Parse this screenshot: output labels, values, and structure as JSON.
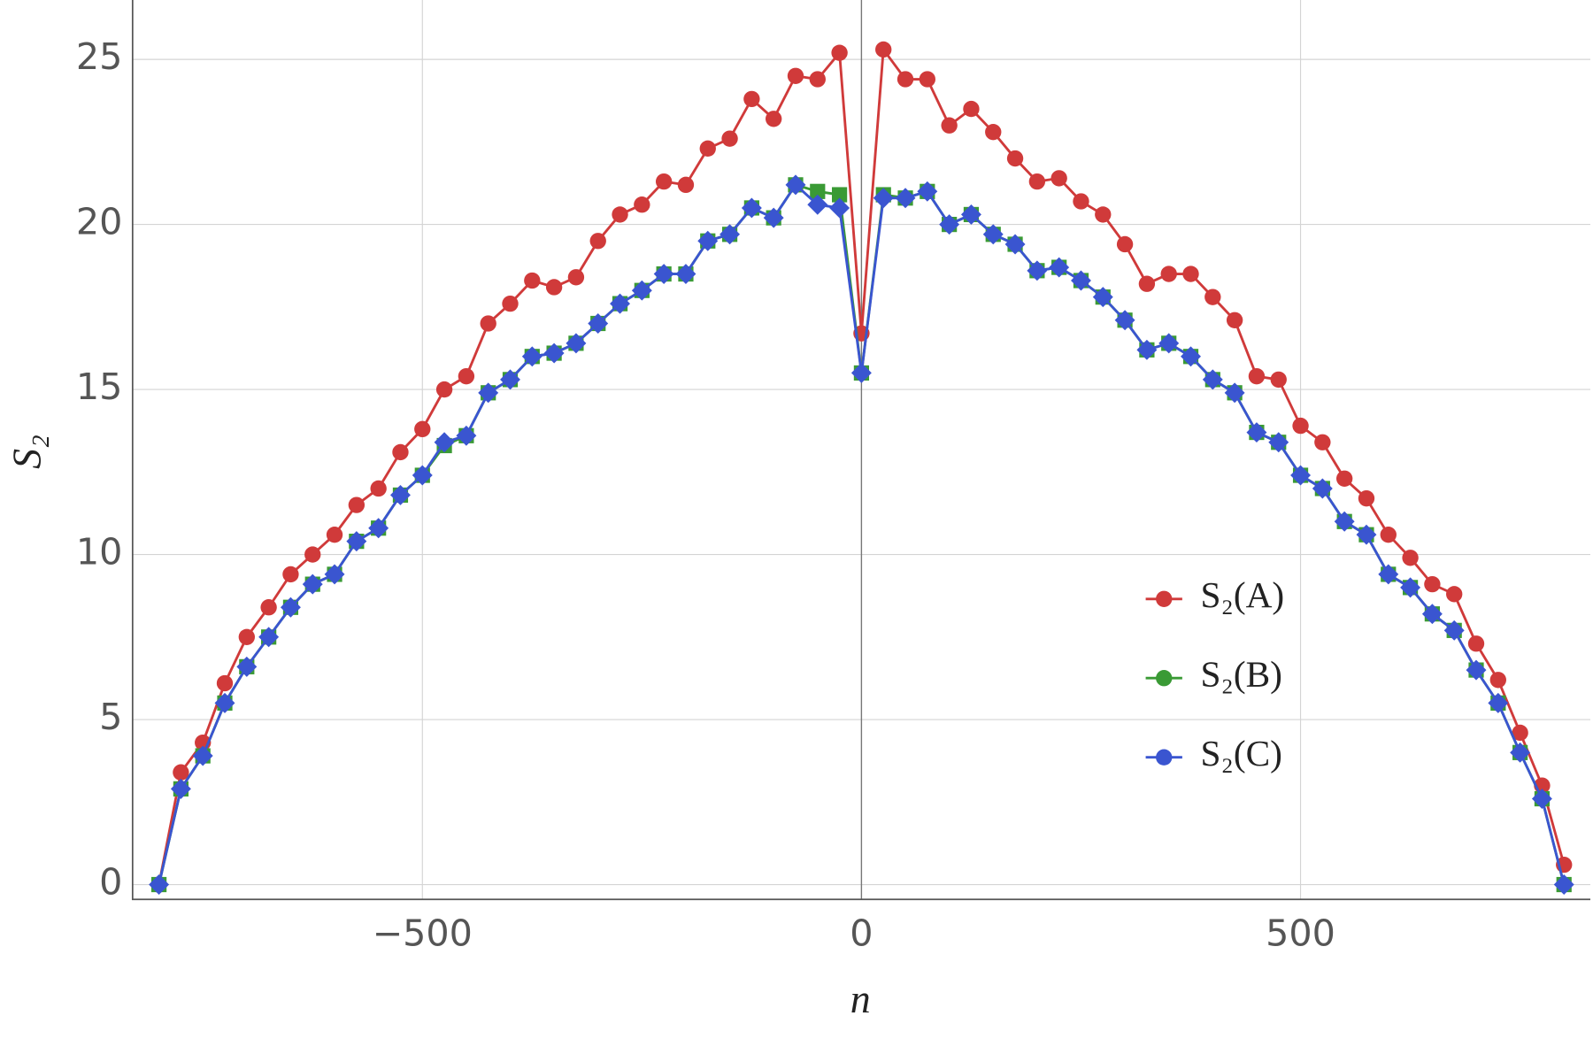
{
  "chart_data": {
    "type": "line",
    "x_label": "n",
    "y_label": "S₂",
    "x": [
      -800,
      -775,
      -750,
      -725,
      -700,
      -675,
      -650,
      -625,
      -600,
      -575,
      -550,
      -525,
      -500,
      -475,
      -450,
      -425,
      -400,
      -375,
      -350,
      -325,
      -300,
      -275,
      -250,
      -225,
      -200,
      -175,
      -150,
      -125,
      -100,
      -75,
      -50,
      -25,
      0,
      25,
      50,
      75,
      100,
      125,
      150,
      175,
      200,
      225,
      250,
      275,
      300,
      325,
      350,
      375,
      400,
      425,
      450,
      475,
      500,
      525,
      550,
      575,
      600,
      625,
      650,
      675,
      700,
      725,
      750,
      775,
      800
    ],
    "series": [
      {
        "name": "S₂(A)",
        "color": "#d03a3a",
        "marker": "circle",
        "values": [
          0,
          3.4,
          4.3,
          6.1,
          7.5,
          8.4,
          9.4,
          10.0,
          10.6,
          11.5,
          12.0,
          13.1,
          13.8,
          15.0,
          15.4,
          17.0,
          17.6,
          18.3,
          18.1,
          18.4,
          19.5,
          20.3,
          20.6,
          21.3,
          21.2,
          22.3,
          22.6,
          23.8,
          23.2,
          24.5,
          24.4,
          25.2,
          16.7,
          25.3,
          24.4,
          24.4,
          23.0,
          23.5,
          22.8,
          22.0,
          21.3,
          21.4,
          20.7,
          20.3,
          19.4,
          18.2,
          18.5,
          18.5,
          17.8,
          17.1,
          15.4,
          15.3,
          13.9,
          13.4,
          12.3,
          11.7,
          10.6,
          9.9,
          9.1,
          8.8,
          7.3,
          6.2,
          4.6,
          3.0,
          0.6
        ]
      },
      {
        "name": "S₂(B)",
        "color": "#3a9a35",
        "marker": "square",
        "values": [
          0,
          2.9,
          3.9,
          5.5,
          6.6,
          7.5,
          8.4,
          9.1,
          9.4,
          10.4,
          10.8,
          11.8,
          12.4,
          13.3,
          13.6,
          14.9,
          15.3,
          16.0,
          16.1,
          16.4,
          17.0,
          17.6,
          18.0,
          18.5,
          18.5,
          19.5,
          19.7,
          20.5,
          20.2,
          21.2,
          21.0,
          20.9,
          15.5,
          20.9,
          20.8,
          21.0,
          20.0,
          20.3,
          19.7,
          19.4,
          18.6,
          18.7,
          18.3,
          17.8,
          17.1,
          16.2,
          16.4,
          16.0,
          15.3,
          14.9,
          13.7,
          13.4,
          12.4,
          12.0,
          11.0,
          10.6,
          9.4,
          9.0,
          8.2,
          7.7,
          6.5,
          5.5,
          4.0,
          2.6,
          0
        ]
      },
      {
        "name": "S₂(C)",
        "color": "#3a55d0",
        "marker": "diamond",
        "values": [
          0,
          2.9,
          3.9,
          5.5,
          6.6,
          7.5,
          8.4,
          9.1,
          9.4,
          10.4,
          10.8,
          11.8,
          12.4,
          13.4,
          13.6,
          14.9,
          15.3,
          16.0,
          16.1,
          16.4,
          17.0,
          17.6,
          18.0,
          18.5,
          18.5,
          19.5,
          19.7,
          20.5,
          20.2,
          21.2,
          20.6,
          20.5,
          15.5,
          20.8,
          20.8,
          21.0,
          20.0,
          20.3,
          19.7,
          19.4,
          18.6,
          18.7,
          18.3,
          17.8,
          17.1,
          16.2,
          16.4,
          16.0,
          15.3,
          14.9,
          13.7,
          13.4,
          12.4,
          12.0,
          11.0,
          10.6,
          9.4,
          9.0,
          8.2,
          7.7,
          6.5,
          5.5,
          4.0,
          2.6,
          0
        ]
      }
    ],
    "xlim": [
      -830,
      830
    ],
    "ylim": [
      -0.45,
      26.8
    ],
    "xticks": [
      {
        "value": -500,
        "label": "−500"
      },
      0,
      500
    ],
    "yticks": [
      0,
      5,
      10,
      15,
      20,
      25
    ],
    "grid": true,
    "legend": "right"
  }
}
